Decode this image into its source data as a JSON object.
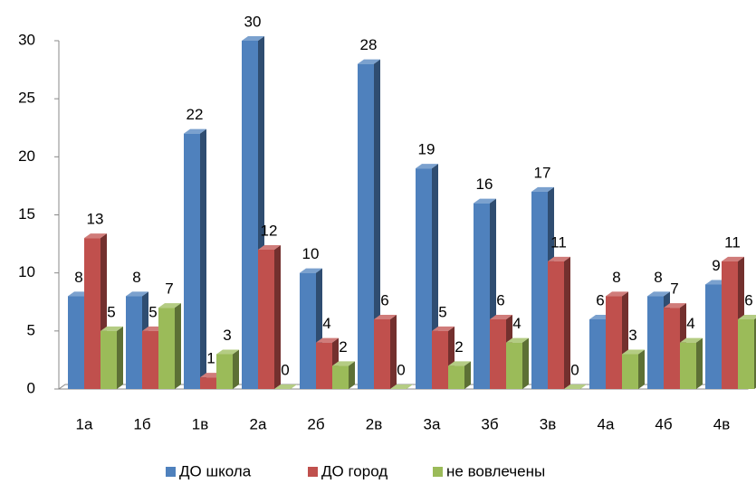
{
  "chart_data": {
    "type": "bar3d",
    "categories": [
      "1а",
      "1б",
      "1в",
      "2а",
      "2б",
      "2в",
      "3а",
      "3б",
      "3в",
      "4а",
      "4б",
      "4в"
    ],
    "series": [
      {
        "name": "ДО школа",
        "color": "#4f81bd",
        "values": [
          8,
          8,
          22,
          30,
          10,
          28,
          19,
          16,
          17,
          6,
          8,
          9
        ]
      },
      {
        "name": "ДО город",
        "color": "#c0504d",
        "values": [
          13,
          5,
          1,
          12,
          4,
          6,
          5,
          6,
          11,
          8,
          7,
          11
        ]
      },
      {
        "name": "не вовлечены",
        "color": "#9bbb59",
        "values": [
          5,
          7,
          3,
          0,
          2,
          0,
          2,
          4,
          0,
          3,
          4,
          6
        ]
      }
    ],
    "ylim": [
      0,
      30
    ],
    "yticks": [
      0,
      5,
      10,
      15,
      20,
      25,
      30
    ],
    "grid": false,
    "legend": "bottom"
  }
}
